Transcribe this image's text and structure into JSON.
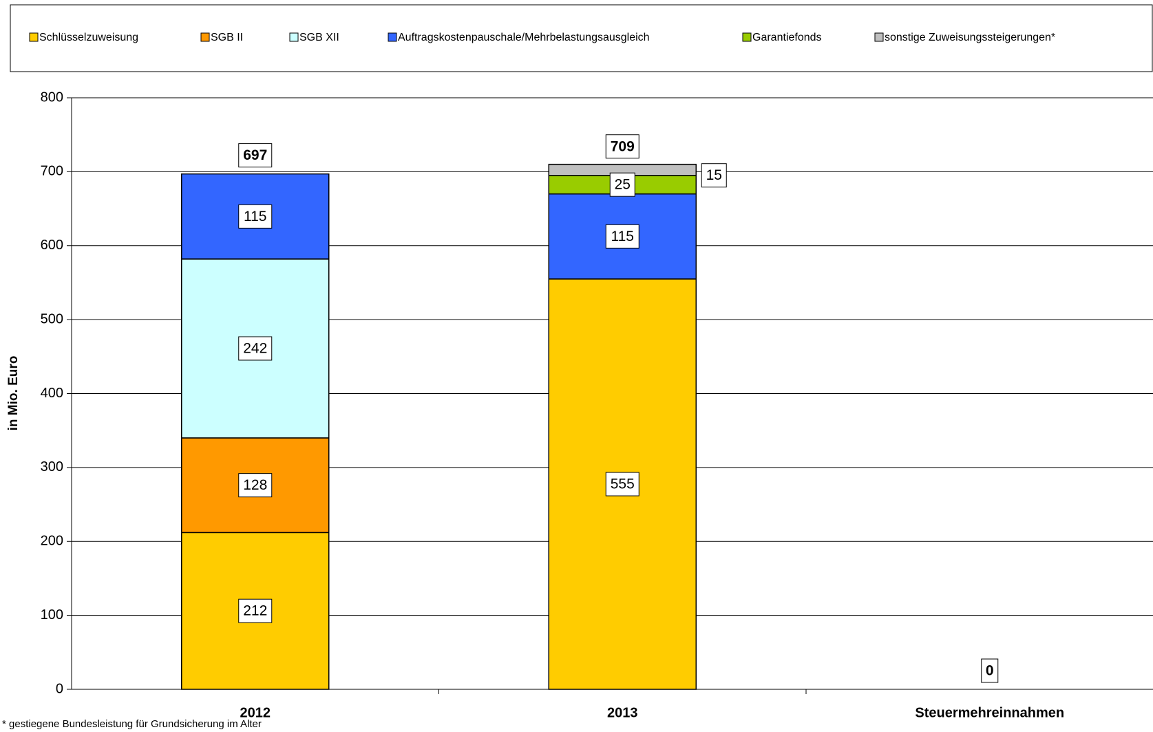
{
  "chart_data": {
    "type": "stacked_bar",
    "y_label": "in Mio. Euro",
    "footnote": "* gestiegene Bundesleistung für Grundsicherung im Alter",
    "categories": [
      "2012",
      "2013",
      "Steuermehreinnahmen"
    ],
    "series": [
      {
        "name": "Schlüsselzuweisung",
        "color": "#FFCC00",
        "values": [
          212,
          555,
          null
        ]
      },
      {
        "name": "SGB II",
        "color": "#FF9900",
        "values": [
          128,
          null,
          null
        ]
      },
      {
        "name": "SGB XII",
        "color": "#CCFFFF",
        "values": [
          242,
          null,
          null
        ]
      },
      {
        "name": "Auftragskostenpauschale/Mehrbelastungsausgleich",
        "color": "#3366FF",
        "values": [
          115,
          115,
          null
        ]
      },
      {
        "name": "Garantiefonds",
        "color": "#99CC00",
        "values": [
          null,
          25,
          null
        ]
      },
      {
        "name": "sonstige Zuweisungssteigerungen*",
        "color": "#C0C0C0",
        "values": [
          null,
          15,
          null
        ]
      }
    ],
    "totals": [
      697,
      709,
      0
    ],
    "ylim": [
      0,
      800
    ],
    "yticks": [
      0,
      100,
      200,
      300,
      400,
      500,
      600,
      700,
      800
    ],
    "grid": true
  }
}
